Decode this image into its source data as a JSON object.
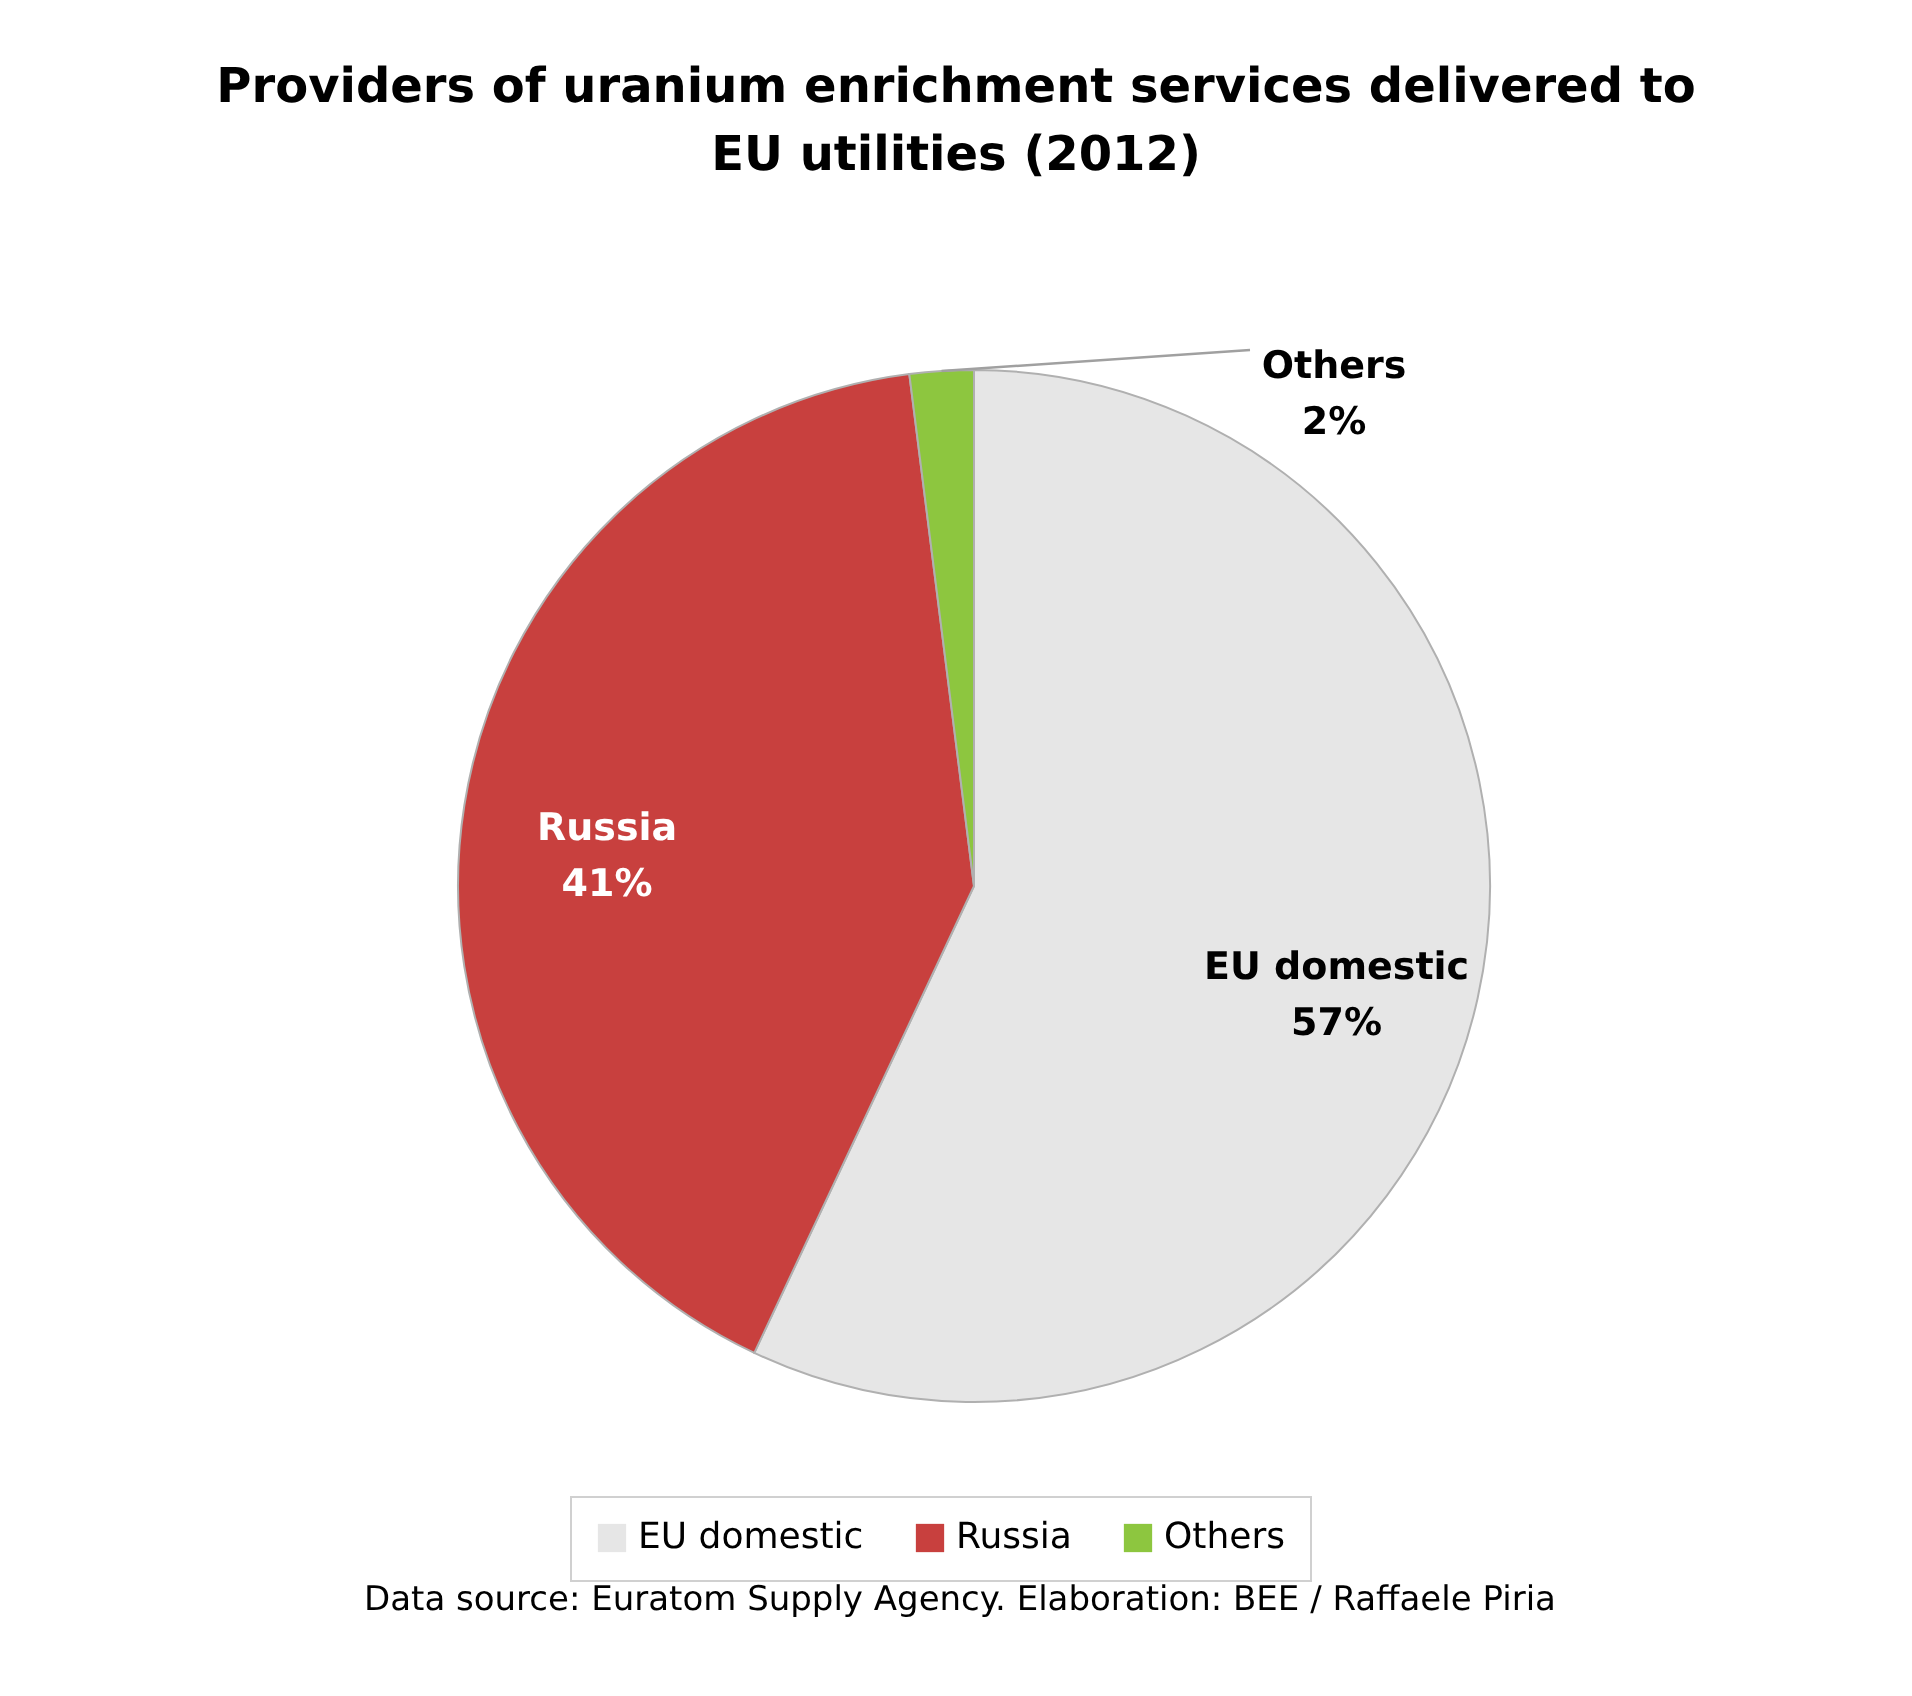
{
  "chart_data": {
    "type": "pie",
    "title": "Providers of uranium enrichment services delivered to EU utilities (2012)",
    "categories": [
      "EU domestic",
      "Russia",
      "Others"
    ],
    "values": [
      57,
      41,
      2
    ],
    "colors": [
      "#e6e6e6",
      "#c8403e",
      "#8dc63f"
    ],
    "value_labels": [
      "57%",
      "41%",
      "2%"
    ],
    "legend": "bottom",
    "annotations": [
      "Data source: Euratom Supply Agency. Elaboration: BEE / Raffaele Piria"
    ]
  }
}
